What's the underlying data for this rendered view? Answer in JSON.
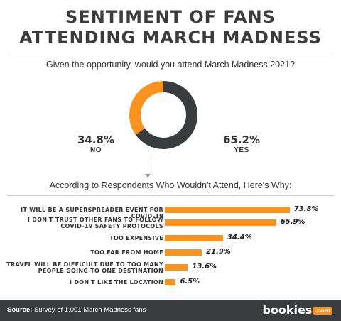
{
  "header": {
    "title_line1": "SENTIMENT OF FANS",
    "title_line2": "ATTENDING MARCH MADNESS",
    "question": "Given the opportunity, would you attend March Madness 2021?"
  },
  "colors": {
    "accent": "#f7931e",
    "dark": "#3a3d40"
  },
  "chart_data": [
    {
      "type": "pie",
      "donut": true,
      "title": "Given the opportunity, would you attend March Madness 2021?",
      "slices": [
        {
          "label": "NO",
          "value": 34.8,
          "display": "34.8%",
          "color": "#f7931e"
        },
        {
          "label": "YES",
          "value": 65.2,
          "display": "65.2%",
          "color": "#3a3d40"
        }
      ]
    },
    {
      "type": "bar",
      "orientation": "horizontal",
      "title": "According to Respondents Who Wouldn't Attend, Here's Why:",
      "categories": [
        "IT WILL BE A SUPERSPREADER EVENT FOR COVID-19",
        "I DON'T TRUST OTHER FANS TO FOLLOW COVID-19 SAFETY PROTOCOLS",
        "TOO EXPENSIVE",
        "TOO FAR FROM HOME",
        "TRAVEL WILL BE DIFFICULT DUE TO TOO MANY PEOPLE GOING TO ONE DESTINATION",
        "I DON'T LIKE THE LOCATION"
      ],
      "category_lines": [
        [
          "IT WILL BE A SUPERSPREADER EVENT FOR COVID-19"
        ],
        [
          "I DON'T TRUST OTHER FANS TO FOLLOW",
          "COVID-19 SAFETY PROTOCOLS"
        ],
        [
          "TOO EXPENSIVE"
        ],
        [
          "TOO FAR FROM HOME"
        ],
        [
          "TRAVEL WILL BE DIFFICULT DUE TO TOO MANY",
          "PEOPLE GOING TO ONE DESTINATION"
        ],
        [
          "I DON'T LIKE THE LOCATION"
        ]
      ],
      "values": [
        73.8,
        65.9,
        34.4,
        21.9,
        13.6,
        6.5
      ],
      "value_labels": [
        "73.8%",
        "65.9%",
        "34.4%",
        "21.9%",
        "13.6%",
        "6.5%"
      ],
      "xlim": [
        0,
        100
      ]
    }
  ],
  "footer": {
    "source_label": "Source:",
    "source_text": " Survey of 1,001 March Madness fans",
    "logo_text": "bookies",
    "logo_suffix": ".com"
  }
}
